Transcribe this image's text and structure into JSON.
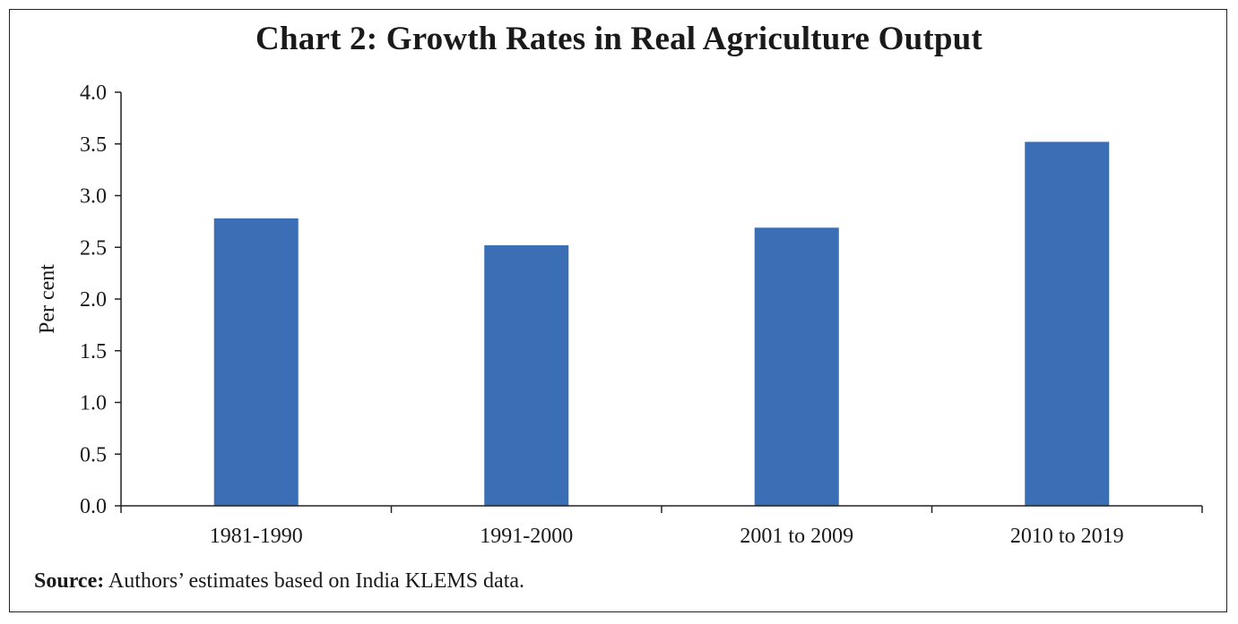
{
  "chart_data": {
    "type": "bar",
    "title": "Chart 2: Growth Rates in Real Agriculture Output",
    "xlabel": "",
    "ylabel": "Per cent",
    "categories": [
      "1981-1990",
      "1991-2000",
      "2001 to 2009",
      "2010 to 2019"
    ],
    "values": [
      2.78,
      2.52,
      2.69,
      3.52
    ],
    "ylim": [
      0,
      4.0
    ],
    "yticks": [
      "0.0",
      "0.5",
      "1.0",
      "1.5",
      "2.0",
      "2.5",
      "3.0",
      "3.5",
      "4.0"
    ],
    "bar_color": "#3A6EB5",
    "grid": false,
    "legend": "none"
  },
  "source": {
    "label": "Source:",
    "text": " Authors’ estimates based on India KLEMS data."
  }
}
